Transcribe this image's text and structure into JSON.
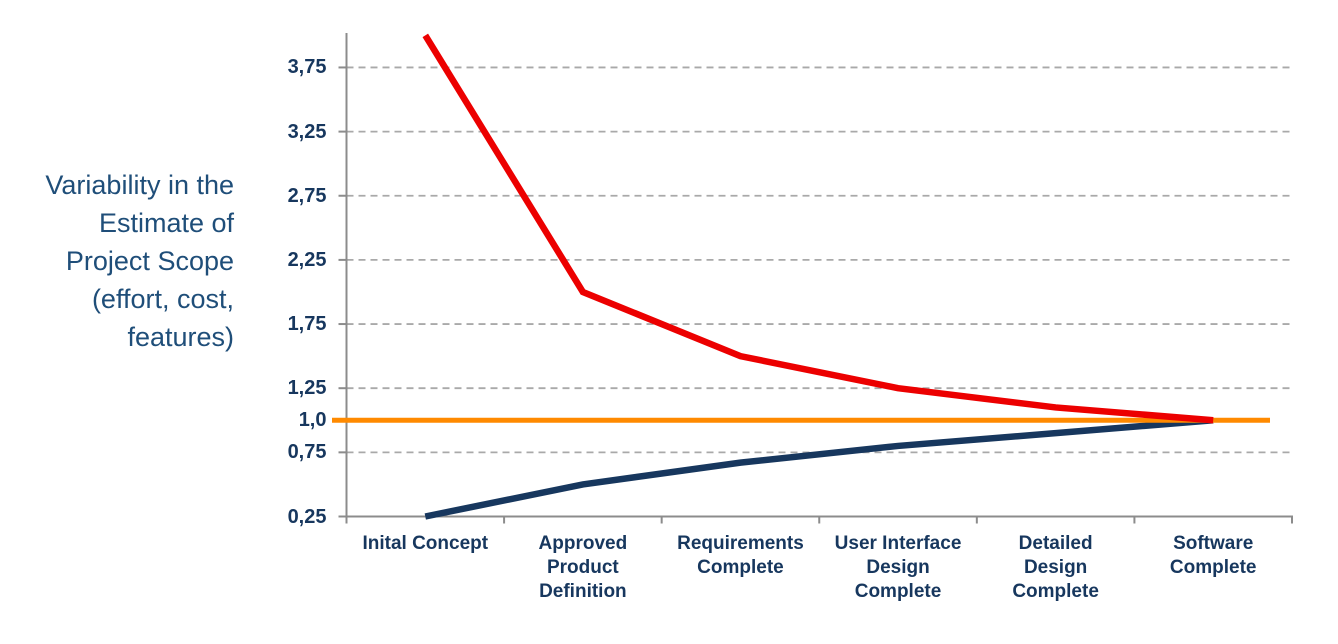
{
  "side_label": {
    "text": "Variability in the\nEstimate of\nProject Scope\n(effort, cost,\nfeatures)"
  },
  "chart_data": {
    "type": "line",
    "title": "",
    "xlabel": "",
    "ylabel": "Variability in the Estimate of Project Scope (effort, cost, features)",
    "categories": [
      "Inital Concept",
      "Approved Product Definition",
      "Requirements Complete",
      "User Interface Design Complete",
      "Detailed Design Complete",
      "Software Complete"
    ],
    "category_label_lines": [
      [
        "Inital Concept"
      ],
      [
        "Approved",
        "Product",
        "Definition"
      ],
      [
        "Requirements",
        "Complete"
      ],
      [
        "User Interface",
        "Design",
        "Complete"
      ],
      [
        "Detailed",
        "Design",
        "Complete"
      ],
      [
        "Software",
        "Complete"
      ]
    ],
    "series": [
      {
        "name": "upper-estimate-bound",
        "color": "#EC0000",
        "values": [
          4.0,
          2.0,
          1.5,
          1.25,
          1.1,
          1.0
        ]
      },
      {
        "name": "lower-estimate-bound",
        "color": "#17375E",
        "values": [
          0.25,
          0.5,
          0.67,
          0.8,
          0.9,
          1.0
        ]
      }
    ],
    "baseline": {
      "name": "final-scope-baseline",
      "color": "#FF8A00",
      "value": 1.0
    },
    "y_ticks": [
      {
        "label": "3,75",
        "value": 3.75,
        "grid": true
      },
      {
        "label": "3,25",
        "value": 3.25,
        "grid": true
      },
      {
        "label": "2,75",
        "value": 2.75,
        "grid": true
      },
      {
        "label": "2,25",
        "value": 2.25,
        "grid": true
      },
      {
        "label": "1,75",
        "value": 1.75,
        "grid": true
      },
      {
        "label": "1,25",
        "value": 1.25,
        "grid": true
      },
      {
        "label": "1,0",
        "value": 1.0,
        "grid": false
      },
      {
        "label": "0,75",
        "value": 0.75,
        "grid": true
      },
      {
        "label": "0,25",
        "value": 0.25,
        "grid": false
      }
    ],
    "ylim": [
      0.25,
      4.02
    ],
    "grid": "horizontal-dashed",
    "legend": "none"
  },
  "colors": {
    "tick_text": "#17375E",
    "side_label_text": "#1F4E79",
    "axis": "#8C8C8C",
    "gridline": "#A9A9A9",
    "background": "#FFFFFF"
  }
}
